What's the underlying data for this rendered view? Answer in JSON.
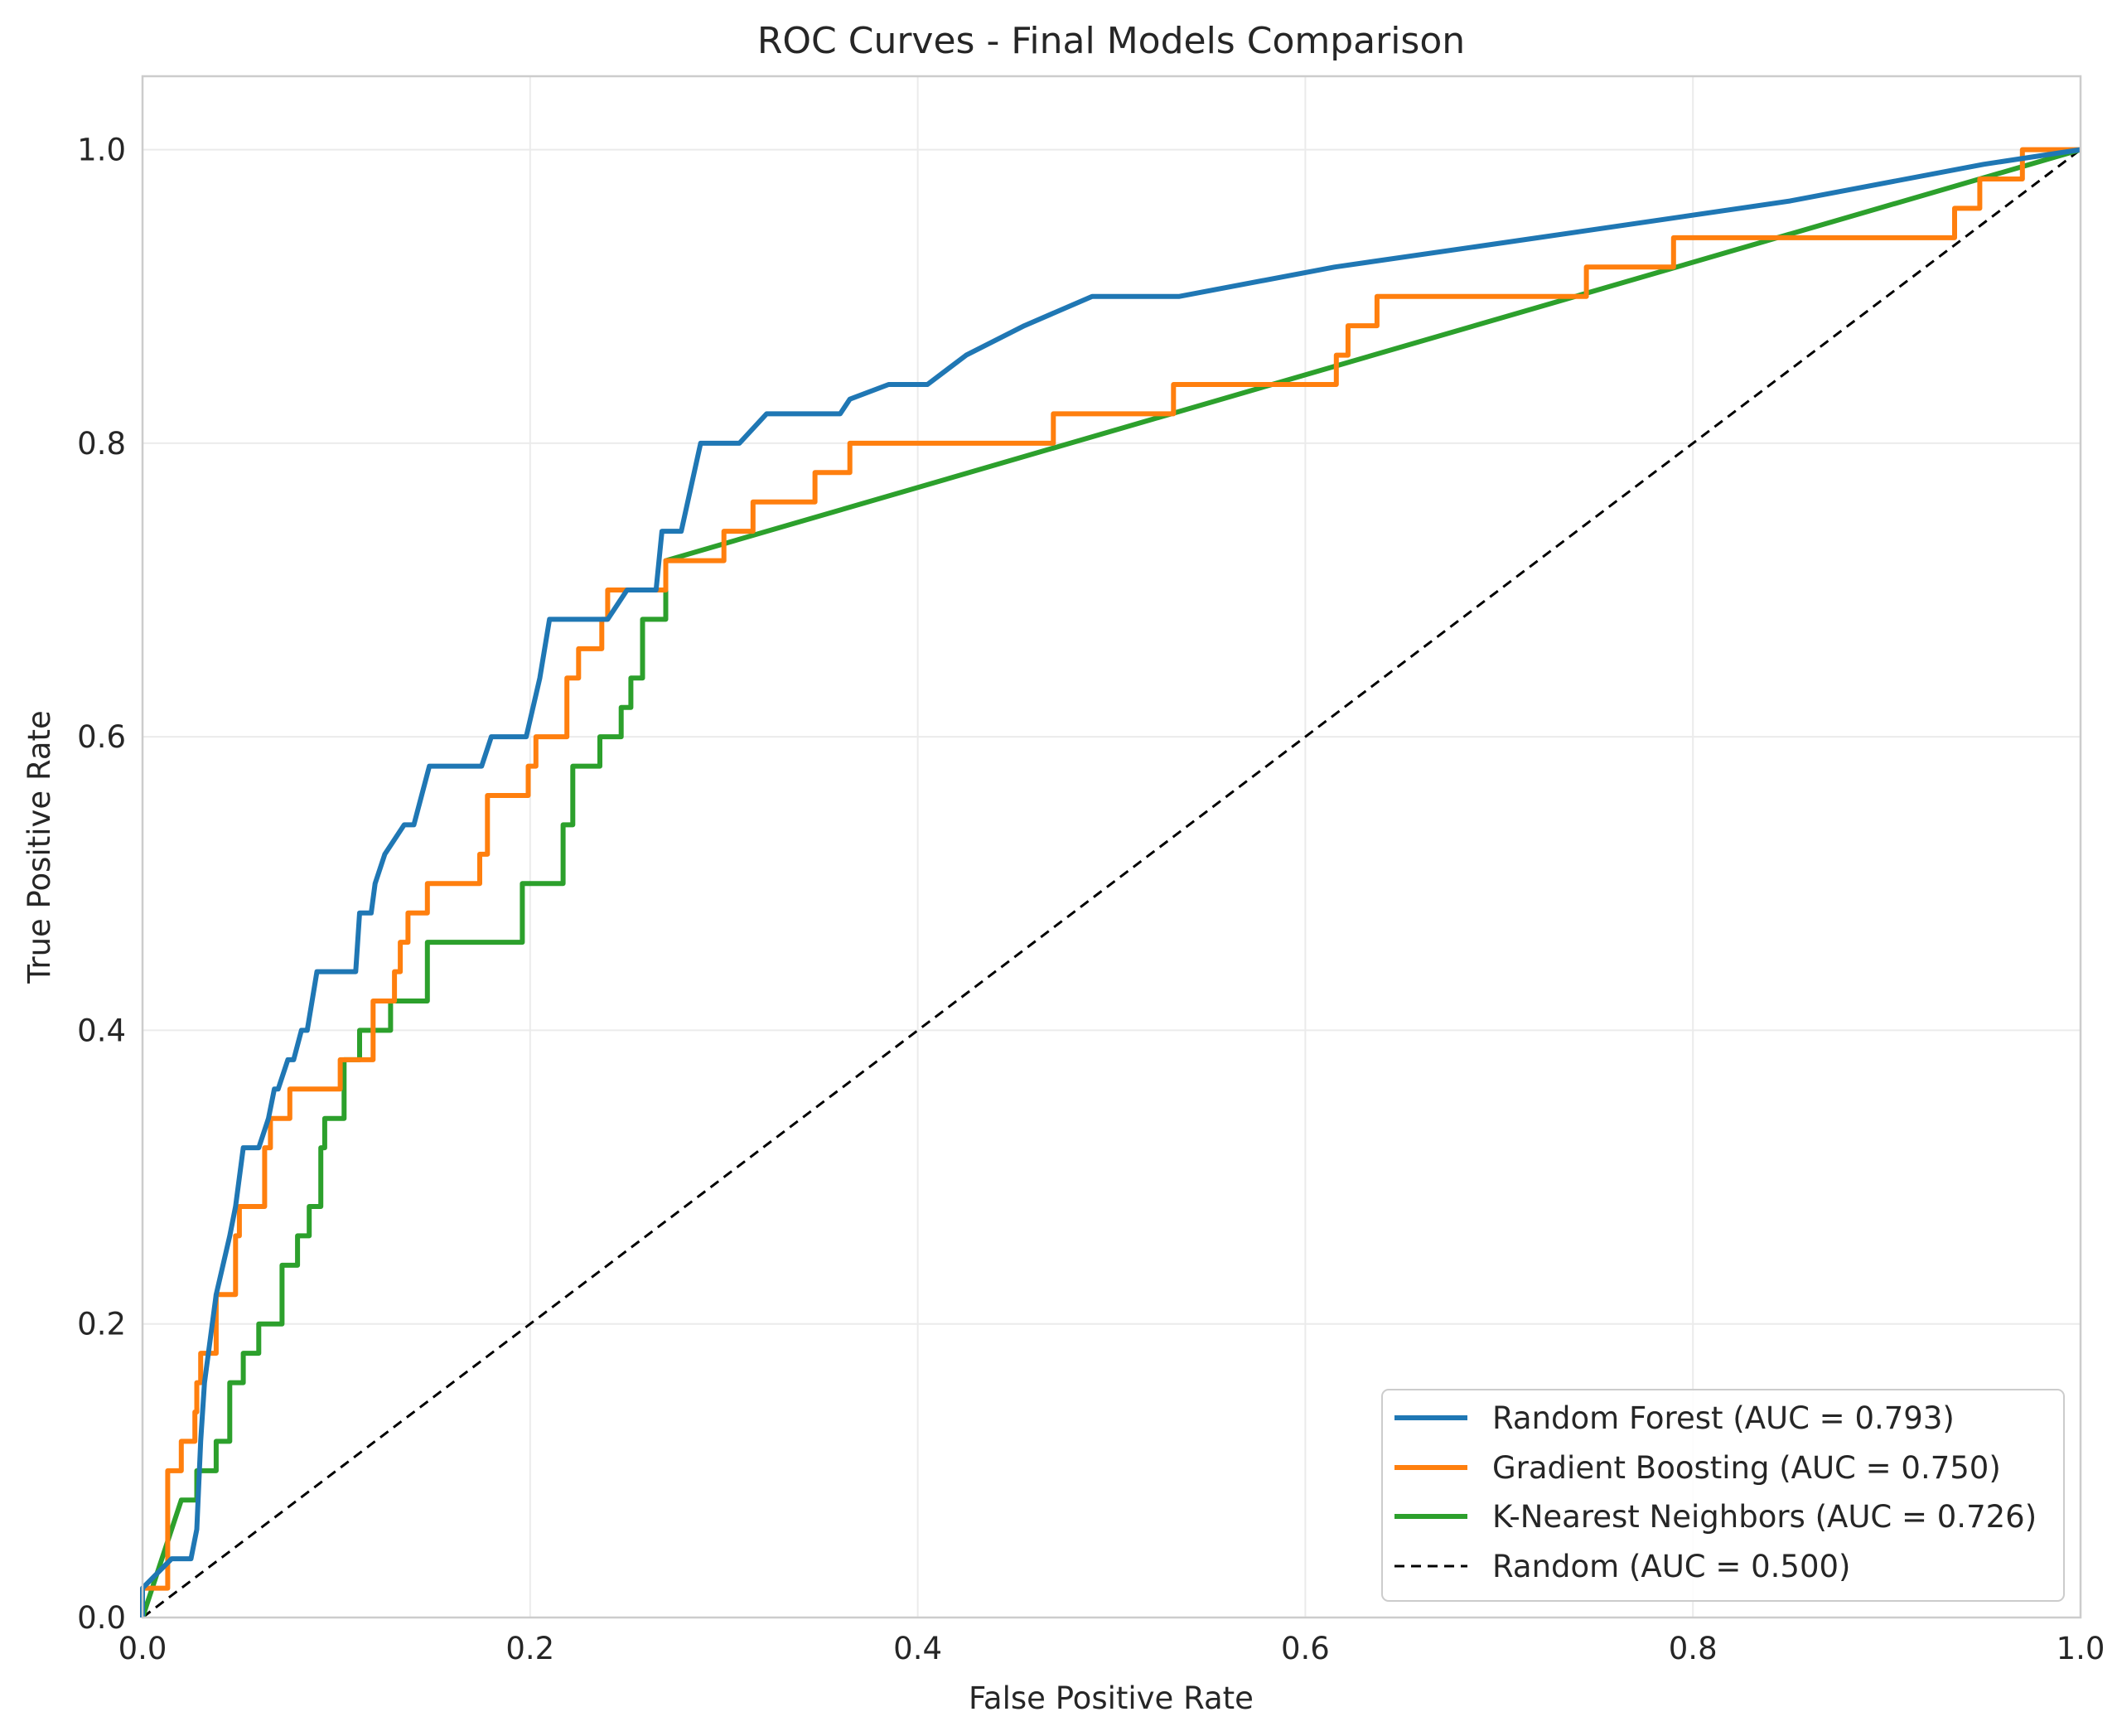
{
  "chart_data": {
    "type": "line",
    "title": "ROC Curves - Final Models Comparison",
    "xlabel": "False Positive Rate",
    "ylabel": "True Positive Rate",
    "xlim": [
      0.0,
      1.0
    ],
    "ylim": [
      0.0,
      1.05
    ],
    "xticks": [
      0.0,
      0.2,
      0.4,
      0.6,
      0.8,
      1.0
    ],
    "yticks": [
      0.0,
      0.2,
      0.4,
      0.6,
      0.8,
      1.0
    ],
    "xtick_labels": [
      "0.0",
      "0.2",
      "0.4",
      "0.6",
      "0.8",
      "1.0"
    ],
    "ytick_labels": [
      "0.0",
      "0.2",
      "0.4",
      "0.6",
      "0.8",
      "1.0"
    ],
    "grid": true,
    "legend_position": "lower-right",
    "series": [
      {
        "name": "Random Forest (AUC = 0.793)",
        "color": "#1f77b4",
        "style": "solid",
        "x": [
          0.0,
          0.0,
          0.015,
          0.025,
          0.028,
          0.03,
          0.032,
          0.034,
          0.036,
          0.038,
          0.045,
          0.048,
          0.052,
          0.06,
          0.065,
          0.068,
          0.07,
          0.075,
          0.078,
          0.082,
          0.085,
          0.09,
          0.11,
          0.112,
          0.118,
          0.12,
          0.125,
          0.135,
          0.14,
          0.148,
          0.152,
          0.175,
          0.18,
          0.198,
          0.205,
          0.21,
          0.215,
          0.24,
          0.245,
          0.25,
          0.265,
          0.268,
          0.278,
          0.288,
          0.308,
          0.322,
          0.335,
          0.36,
          0.365,
          0.385,
          0.405,
          0.425,
          0.455,
          0.49,
          0.535,
          0.615,
          0.72,
          0.85,
          0.95,
          1.0
        ],
        "y": [
          0.0,
          0.02,
          0.04,
          0.04,
          0.06,
          0.12,
          0.16,
          0.18,
          0.2,
          0.22,
          0.26,
          0.28,
          0.32,
          0.32,
          0.34,
          0.36,
          0.36,
          0.38,
          0.38,
          0.4,
          0.4,
          0.44,
          0.44,
          0.48,
          0.48,
          0.5,
          0.52,
          0.54,
          0.54,
          0.58,
          0.58,
          0.58,
          0.6,
          0.6,
          0.64,
          0.68,
          0.68,
          0.68,
          0.69,
          0.7,
          0.7,
          0.74,
          0.74,
          0.8,
          0.8,
          0.82,
          0.82,
          0.82,
          0.83,
          0.84,
          0.84,
          0.86,
          0.88,
          0.9,
          0.9,
          0.92,
          0.94,
          0.965,
          0.99,
          1.0
        ]
      },
      {
        "name": "Gradient Boosting (AUC = 0.750)",
        "color": "#ff7f0e",
        "style": "solid",
        "x": [
          0.0,
          0.0,
          0.013,
          0.013,
          0.02,
          0.02,
          0.027,
          0.027,
          0.028,
          0.028,
          0.03,
          0.03,
          0.038,
          0.038,
          0.048,
          0.048,
          0.05,
          0.05,
          0.063,
          0.063,
          0.066,
          0.066,
          0.076,
          0.076,
          0.102,
          0.102,
          0.119,
          0.119,
          0.13,
          0.13,
          0.133,
          0.133,
          0.137,
          0.137,
          0.147,
          0.147,
          0.174,
          0.174,
          0.178,
          0.178,
          0.199,
          0.199,
          0.203,
          0.203,
          0.219,
          0.219,
          0.225,
          0.225,
          0.227,
          0.227,
          0.237,
          0.237,
          0.24,
          0.24,
          0.27,
          0.27,
          0.3,
          0.3,
          0.315,
          0.315,
          0.347,
          0.347,
          0.365,
          0.365,
          0.47,
          0.47,
          0.532,
          0.532,
          0.616,
          0.616,
          0.622,
          0.622,
          0.637,
          0.637,
          0.745,
          0.745,
          0.79,
          0.79,
          0.935,
          0.935,
          0.948,
          0.948,
          0.97,
          0.97,
          1.0
        ],
        "y": [
          0.0,
          0.02,
          0.02,
          0.1,
          0.1,
          0.12,
          0.12,
          0.14,
          0.14,
          0.16,
          0.16,
          0.18,
          0.18,
          0.22,
          0.22,
          0.26,
          0.26,
          0.28,
          0.28,
          0.32,
          0.32,
          0.34,
          0.34,
          0.36,
          0.36,
          0.38,
          0.38,
          0.42,
          0.42,
          0.44,
          0.44,
          0.46,
          0.46,
          0.48,
          0.48,
          0.5,
          0.5,
          0.52,
          0.52,
          0.56,
          0.56,
          0.58,
          0.58,
          0.6,
          0.6,
          0.64,
          0.64,
          0.66,
          0.66,
          0.66,
          0.66,
          0.68,
          0.68,
          0.7,
          0.7,
          0.72,
          0.72,
          0.74,
          0.74,
          0.76,
          0.76,
          0.78,
          0.78,
          0.8,
          0.8,
          0.82,
          0.82,
          0.84,
          0.84,
          0.86,
          0.86,
          0.88,
          0.88,
          0.9,
          0.9,
          0.92,
          0.92,
          0.94,
          0.94,
          0.96,
          0.96,
          0.98,
          0.98,
          1.0,
          1.0
        ]
      },
      {
        "name": "K-Nearest Neighbors (AUC = 0.726)",
        "color": "#2ca02c",
        "style": "solid",
        "x": [
          0.0,
          0.02,
          0.028,
          0.028,
          0.038,
          0.038,
          0.045,
          0.045,
          0.052,
          0.052,
          0.06,
          0.06,
          0.072,
          0.072,
          0.08,
          0.08,
          0.086,
          0.086,
          0.092,
          0.092,
          0.094,
          0.094,
          0.104,
          0.104,
          0.112,
          0.112,
          0.128,
          0.128,
          0.147,
          0.147,
          0.196,
          0.196,
          0.217,
          0.217,
          0.222,
          0.222,
          0.236,
          0.236,
          0.247,
          0.247,
          0.252,
          0.252,
          0.258,
          0.258,
          0.27,
          0.27,
          1.0
        ],
        "y": [
          0.0,
          0.08,
          0.08,
          0.1,
          0.1,
          0.12,
          0.12,
          0.16,
          0.16,
          0.18,
          0.18,
          0.2,
          0.2,
          0.24,
          0.24,
          0.26,
          0.26,
          0.28,
          0.28,
          0.32,
          0.32,
          0.34,
          0.34,
          0.38,
          0.38,
          0.4,
          0.4,
          0.42,
          0.42,
          0.46,
          0.46,
          0.5,
          0.5,
          0.54,
          0.54,
          0.58,
          0.58,
          0.6,
          0.6,
          0.62,
          0.62,
          0.64,
          0.64,
          0.68,
          0.68,
          0.72,
          1.0
        ]
      },
      {
        "name": "Random (AUC = 0.500)",
        "color": "#000000",
        "style": "dashed",
        "x": [
          0.0,
          1.0
        ],
        "y": [
          0.0,
          1.0
        ]
      }
    ]
  }
}
